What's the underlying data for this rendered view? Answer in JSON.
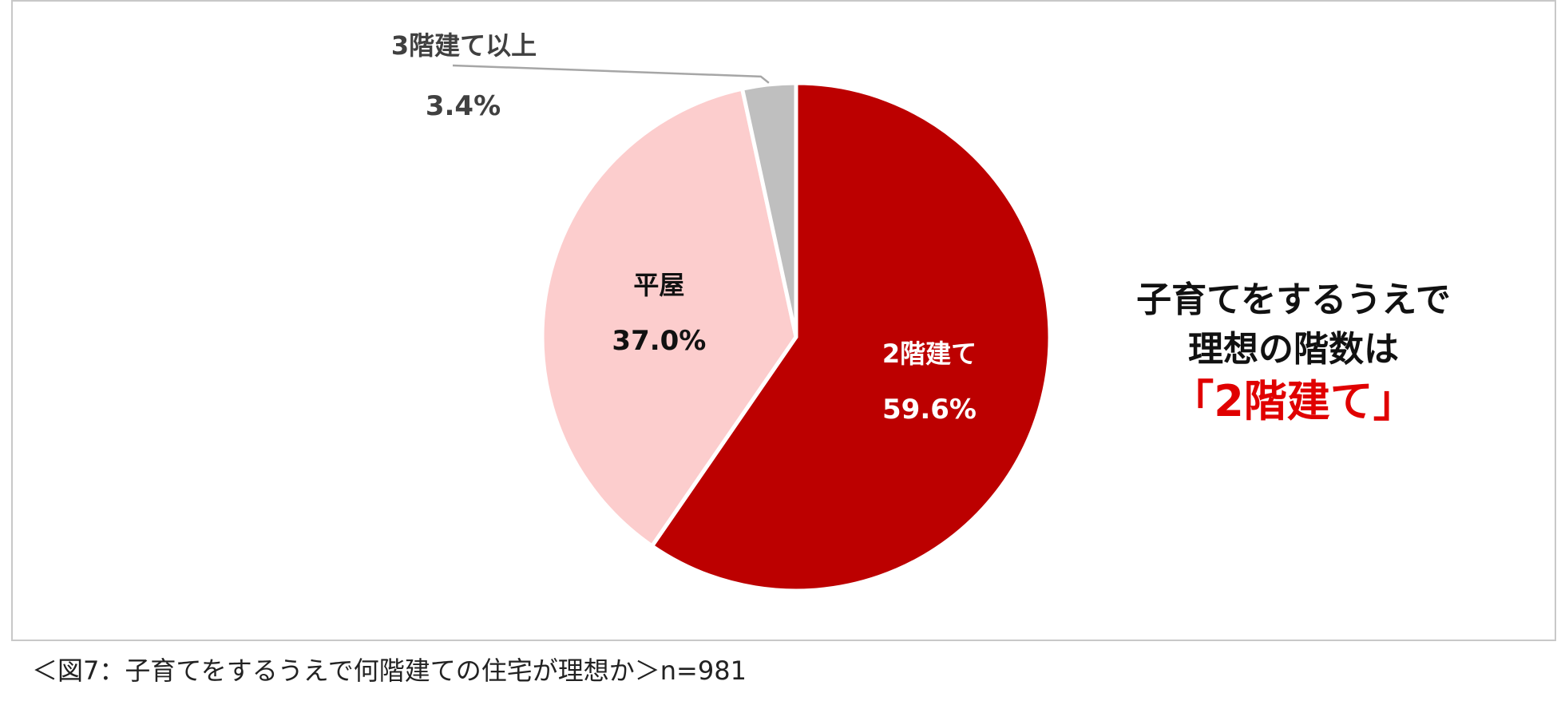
{
  "chart_data": {
    "type": "pie",
    "title": "",
    "slices": [
      {
        "label": "2階建て",
        "value": 59.6,
        "value_text": "59.6%",
        "color": "#BC0000",
        "label_color": "#ffffff"
      },
      {
        "label": "平屋",
        "value": 37.0,
        "value_text": "37.0%",
        "color": "#FCCDCD",
        "label_color": "#111111"
      },
      {
        "label": "3階建て以上",
        "value": 3.4,
        "value_text": "3.4%",
        "color": "#BFBFBF",
        "label_color": "#404040"
      }
    ],
    "start_angle": "12 o'clock, clockwise"
  },
  "headline": {
    "line1": "子育てをするうえで",
    "line2": "理想の階数は",
    "line3": "「2階建て」",
    "highlight_color": "#E00000"
  },
  "caption": "＜図7：子育てをするうえで何階建ての住宅が理想か＞n=981"
}
